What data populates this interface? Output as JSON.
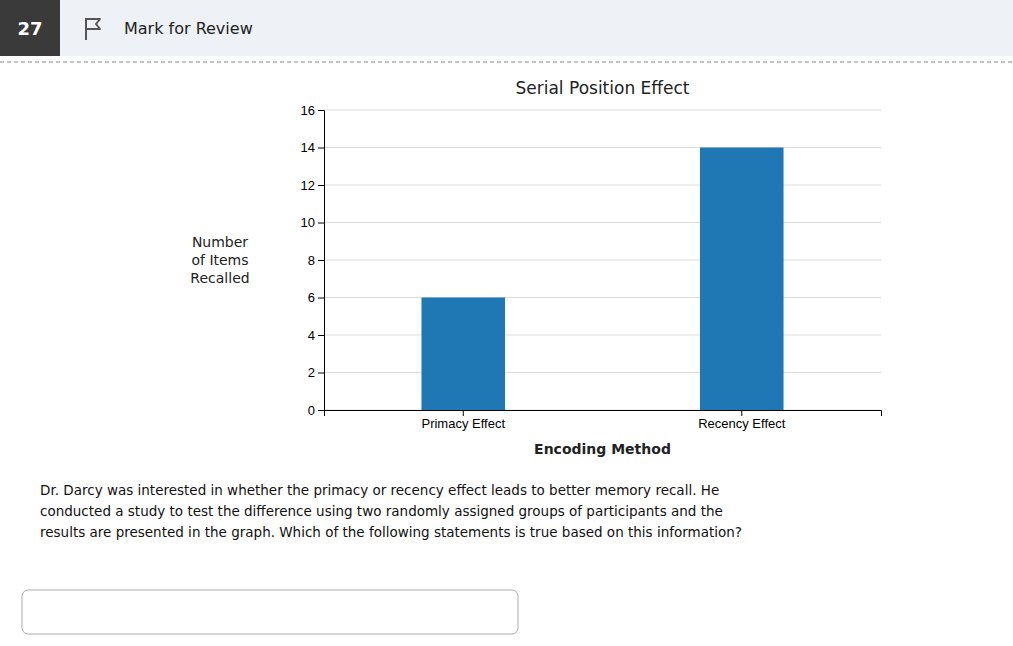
{
  "header_number": "27",
  "header_text": "Mark for Review",
  "body_text": "Dr. Darcy was interested in whether the primacy or recency effect leads to better memory recall. He\nconducted a study to test the difference using two randomly assigned groups of participants and the\nresults are presented in the graph. Which of the following statements is true based on this information?",
  "chart_data": {
    "type": "bar",
    "title": "Serial Position Effect",
    "xlabel": "Encoding Method",
    "ylabel": "Number\nof Items\nRecalled",
    "categories": [
      "Primacy Effect",
      "Recency Effect"
    ],
    "values": [
      6,
      14
    ],
    "ylim": [
      0,
      16
    ],
    "yticks": [
      0,
      2,
      4,
      6,
      8,
      10,
      12,
      14,
      16
    ],
    "grid": true
  }
}
